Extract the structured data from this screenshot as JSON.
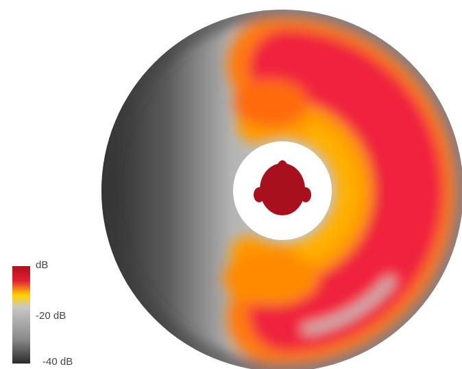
{
  "legend": {
    "labels": [
      "dB",
      "-20 dB",
      "-40 dB"
    ]
  }
}
